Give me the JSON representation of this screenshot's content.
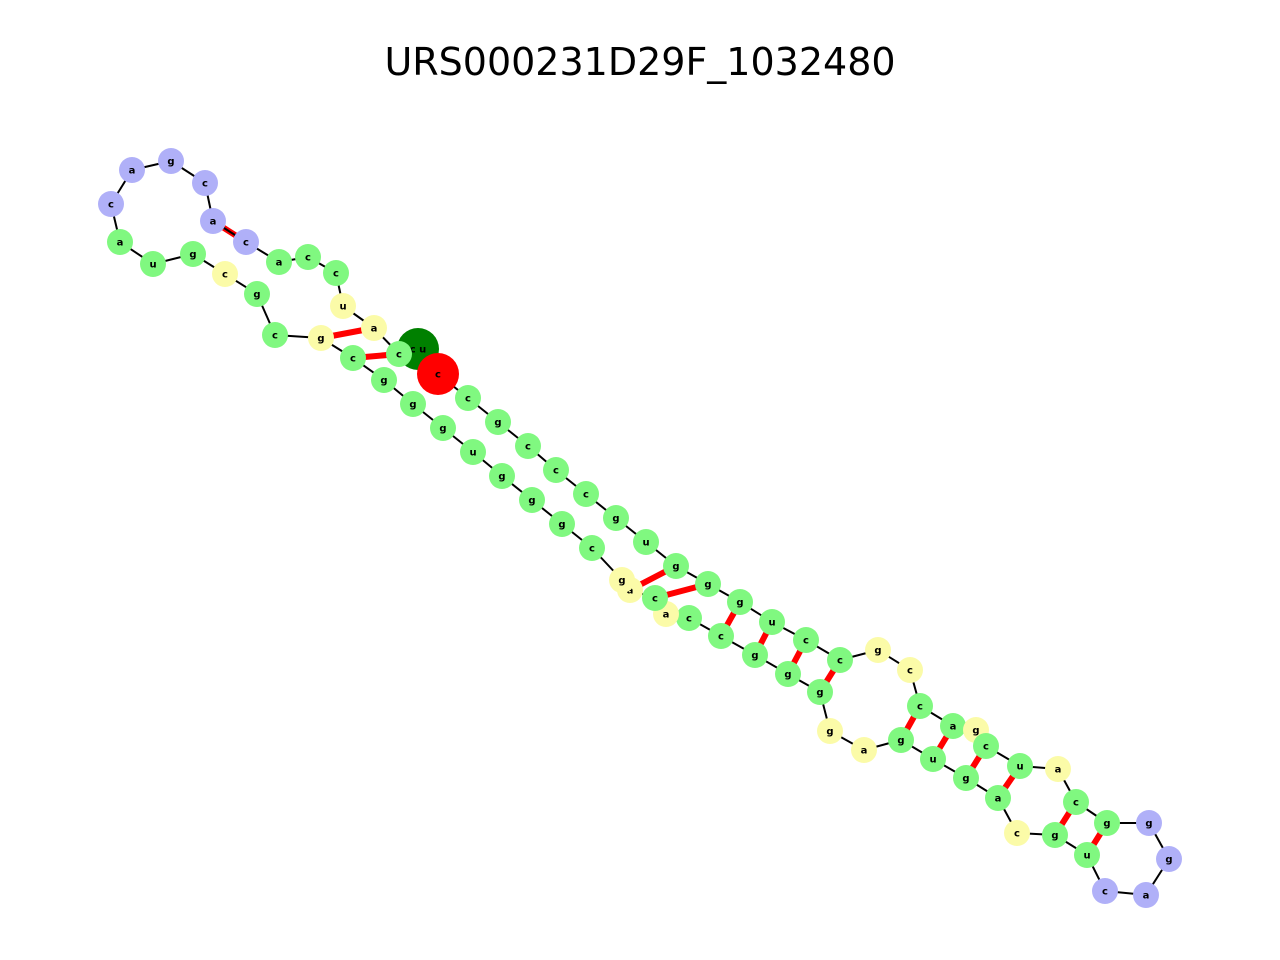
{
  "title": "URS000231D29F_1032480",
  "colors": {
    "stem": "#80f880",
    "loop": "#b0b0f8",
    "unpaired": "#fbfba8",
    "start": "#008000",
    "end": "#ff0000",
    "pair_line": "#ff0000",
    "backbone": "#000000"
  },
  "nodes": [
    {
      "label": "c u",
      "type": "start"
    },
    {
      "label": "c",
      "type": "end"
    },
    {
      "label": "c",
      "type": "stem"
    },
    {
      "label": "g",
      "type": "stem"
    },
    {
      "label": "c",
      "type": "stem"
    },
    {
      "label": "c",
      "type": "stem"
    },
    {
      "label": "c",
      "type": "stem"
    },
    {
      "label": "g",
      "type": "stem"
    },
    {
      "label": "u",
      "type": "stem"
    },
    {
      "label": "g",
      "type": "stem"
    },
    {
      "label": "g",
      "type": "stem"
    },
    {
      "label": "g",
      "type": "stem"
    },
    {
      "label": "u",
      "type": "stem"
    },
    {
      "label": "c",
      "type": "stem"
    },
    {
      "label": "c",
      "type": "stem"
    },
    {
      "label": "g",
      "type": "unpaired"
    },
    {
      "label": "c",
      "type": "unpaired"
    },
    {
      "label": "c",
      "type": "stem"
    },
    {
      "label": "a",
      "type": "stem"
    },
    {
      "label": "g",
      "type": "unpaired"
    },
    {
      "label": "c",
      "type": "stem"
    },
    {
      "label": "u",
      "type": "stem"
    },
    {
      "label": "a",
      "type": "unpaired"
    },
    {
      "label": "c",
      "type": "stem"
    },
    {
      "label": "g",
      "type": "stem"
    },
    {
      "label": "g",
      "type": "loop"
    },
    {
      "label": "g",
      "type": "loop"
    },
    {
      "label": "a",
      "type": "loop"
    },
    {
      "label": "c",
      "type": "loop"
    },
    {
      "label": "u",
      "type": "stem"
    },
    {
      "label": "g",
      "type": "stem"
    },
    {
      "label": "c",
      "type": "unpaired"
    },
    {
      "label": "a",
      "type": "stem"
    },
    {
      "label": "g",
      "type": "stem"
    },
    {
      "label": "u",
      "type": "stem"
    },
    {
      "label": "g",
      "type": "stem"
    },
    {
      "label": "a",
      "type": "unpaired"
    },
    {
      "label": "g",
      "type": "unpaired"
    },
    {
      "label": "g",
      "type": "stem"
    },
    {
      "label": "g",
      "type": "stem"
    },
    {
      "label": "g",
      "type": "stem"
    },
    {
      "label": "c",
      "type": "stem"
    },
    {
      "label": "c",
      "type": "stem"
    },
    {
      "label": "a",
      "type": "unpaired"
    },
    {
      "label": "c",
      "type": "stem"
    },
    {
      "label": "a",
      "type": "unpaired"
    },
    {
      "label": "g",
      "type": "unpaired"
    },
    {
      "label": "c",
      "type": "stem"
    },
    {
      "label": "g",
      "type": "stem"
    },
    {
      "label": "g",
      "type": "stem"
    },
    {
      "label": "g",
      "type": "stem"
    },
    {
      "label": "u",
      "type": "stem"
    },
    {
      "label": "g",
      "type": "stem"
    },
    {
      "label": "g",
      "type": "stem"
    },
    {
      "label": "g",
      "type": "stem"
    },
    {
      "label": "c",
      "type": "stem"
    },
    {
      "label": "g",
      "type": "unpaired"
    },
    {
      "label": "c",
      "type": "stem"
    },
    {
      "label": "g",
      "type": "stem"
    },
    {
      "label": "c",
      "type": "unpaired"
    },
    {
      "label": "g",
      "type": "stem"
    },
    {
      "label": "u",
      "type": "stem"
    },
    {
      "label": "a",
      "type": "stem"
    },
    {
      "label": "c",
      "type": "loop"
    },
    {
      "label": "a",
      "type": "loop"
    },
    {
      "label": "g",
      "type": "loop"
    },
    {
      "label": "c",
      "type": "loop"
    },
    {
      "label": "a",
      "type": "loop"
    },
    {
      "label": "c",
      "type": "loop"
    },
    {
      "label": "a",
      "type": "stem"
    },
    {
      "label": "c",
      "type": "stem"
    },
    {
      "label": "c",
      "type": "stem"
    },
    {
      "label": "u",
      "type": "unpaired"
    },
    {
      "label": "a",
      "type": "unpaired"
    },
    {
      "label": "c",
      "type": "stem"
    },
    {
      "label": "g",
      "type": "stem"
    },
    {
      "label": "c",
      "type": "stem"
    },
    {
      "label": "g",
      "type": "stem"
    },
    {
      "label": "c",
      "type": "stem"
    },
    {
      "label": "c",
      "type": "stem"
    },
    {
      "label": "g",
      "type": "stem"
    },
    {
      "label": "u",
      "type": "stem"
    },
    {
      "label": "c",
      "type": "stem"
    },
    {
      "label": "g",
      "type": "unpaired"
    },
    {
      "label": "a",
      "type": "unpaired"
    },
    {
      "label": "c",
      "type": "stem"
    },
    {
      "label": "c",
      "type": "stem"
    },
    {
      "label": "g",
      "type": "stem"
    },
    {
      "label": "u",
      "type": "stem"
    },
    {
      "label": "c",
      "type": "stem"
    },
    {
      "label": "g",
      "type": "stem"
    },
    {
      "label": "c",
      "type": "stem"
    },
    {
      "label": "a",
      "type": "unpaired"
    }
  ]
}
